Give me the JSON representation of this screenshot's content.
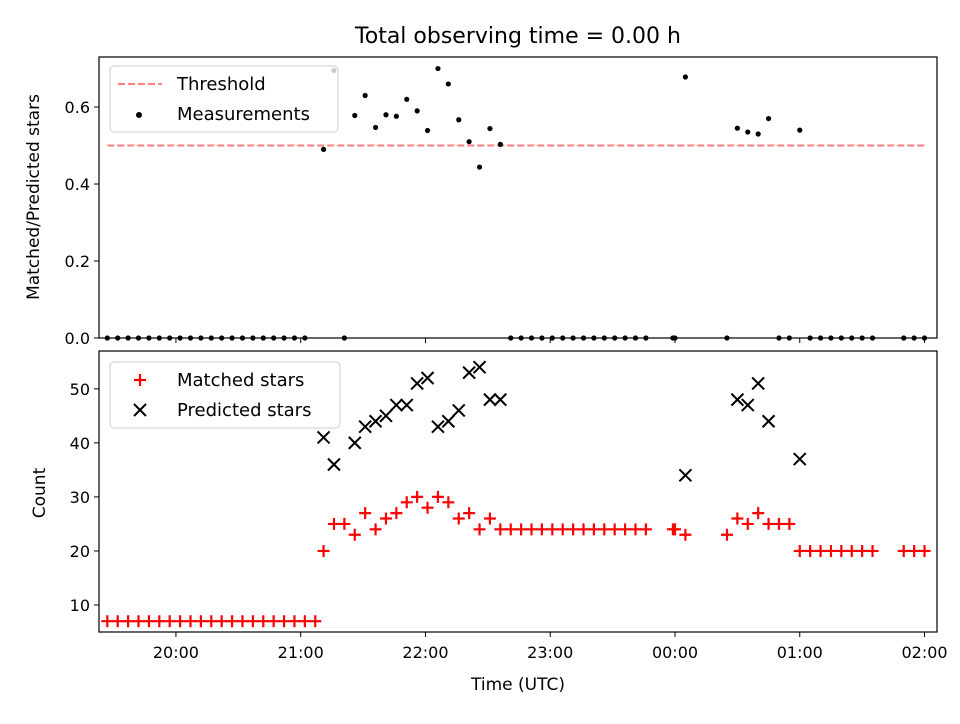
{
  "colors": {
    "threshold": "#ff7f7f",
    "measurement": "#000000",
    "matched": "#ff0000",
    "predicted": "#000000"
  },
  "chart_data": [
    {
      "type": "scatter",
      "title": "Total observing time = 0.00 h",
      "xlabel": "",
      "ylabel": "Matched/Predicted stars",
      "ylim": [
        0,
        0.73
      ],
      "yticks": [
        "0.0",
        "0.2",
        "0.4",
        "0.6"
      ],
      "xticks": [
        "20:00",
        "21:00",
        "22:00",
        "23:00",
        "00:00",
        "01:00",
        "02:00"
      ],
      "legend": {
        "position": "top-left",
        "entries": [
          "Threshold",
          "Measurements"
        ]
      },
      "threshold": {
        "name": "Threshold",
        "value": 0.5,
        "x_start": "19:27",
        "x_end": "02:00"
      },
      "series": [
        {
          "name": "Measurements",
          "points": [
            [
              "19:27",
              0
            ],
            [
              "19:32",
              0
            ],
            [
              "19:37",
              0
            ],
            [
              "19:42",
              0
            ],
            [
              "19:47",
              0
            ],
            [
              "19:52",
              0
            ],
            [
              "19:57",
              0
            ],
            [
              "20:02",
              0
            ],
            [
              "20:07",
              0
            ],
            [
              "20:12",
              0
            ],
            [
              "20:17",
              0
            ],
            [
              "20:22",
              0
            ],
            [
              "20:27",
              0
            ],
            [
              "20:32",
              0
            ],
            [
              "20:37",
              0
            ],
            [
              "20:42",
              0
            ],
            [
              "20:47",
              0
            ],
            [
              "20:52",
              0
            ],
            [
              "20:57",
              0
            ],
            [
              "21:02",
              0
            ],
            [
              "21:11",
              0.49
            ],
            [
              "21:16",
              0.695
            ],
            [
              "21:21",
              0
            ],
            [
              "21:26",
              0.578
            ],
            [
              "21:31",
              0.63
            ],
            [
              "21:36",
              0.547
            ],
            [
              "21:41",
              0.58
            ],
            [
              "21:46",
              0.576
            ],
            [
              "21:51",
              0.62
            ],
            [
              "21:56",
              0.59
            ],
            [
              "22:01",
              0.539
            ],
            [
              "22:06",
              0.7
            ],
            [
              "22:11",
              0.66
            ],
            [
              "22:16",
              0.567
            ],
            [
              "22:21",
              0.51
            ],
            [
              "22:26",
              0.444
            ],
            [
              "22:31",
              0.544
            ],
            [
              "22:36",
              0.503
            ],
            [
              "22:41",
              0
            ],
            [
              "22:46",
              0
            ],
            [
              "22:51",
              0
            ],
            [
              "22:56",
              0
            ],
            [
              "23:01",
              0
            ],
            [
              "23:06",
              0
            ],
            [
              "23:11",
              0
            ],
            [
              "23:16",
              0
            ],
            [
              "23:21",
              0
            ],
            [
              "23:26",
              0
            ],
            [
              "23:31",
              0
            ],
            [
              "23:36",
              0
            ],
            [
              "23:41",
              0
            ],
            [
              "23:46",
              0
            ],
            [
              "23:59",
              0
            ],
            [
              "00:00",
              0
            ],
            [
              "00:05",
              0.678
            ],
            [
              "00:25",
              0
            ],
            [
              "00:30",
              0.545
            ],
            [
              "00:35",
              0.535
            ],
            [
              "00:40",
              0.53
            ],
            [
              "00:45",
              0.57
            ],
            [
              "00:50",
              0
            ],
            [
              "00:55",
              0
            ],
            [
              "01:00",
              0.54
            ],
            [
              "01:05",
              0
            ],
            [
              "01:10",
              0
            ],
            [
              "01:15",
              0
            ],
            [
              "01:20",
              0
            ],
            [
              "01:25",
              0
            ],
            [
              "01:30",
              0
            ],
            [
              "01:35",
              0
            ],
            [
              "01:50",
              0
            ],
            [
              "01:55",
              0
            ],
            [
              "02:00",
              0
            ]
          ]
        }
      ]
    },
    {
      "type": "scatter",
      "title": "",
      "xlabel": "Time (UTC)",
      "ylabel": "Count",
      "ylim": [
        5,
        57
      ],
      "yticks": [
        "10",
        "20",
        "30",
        "40",
        "50"
      ],
      "xticks": [
        "20:00",
        "21:00",
        "22:00",
        "23:00",
        "00:00",
        "01:00",
        "02:00"
      ],
      "legend": {
        "position": "top-left",
        "entries": [
          "Matched stars",
          "Predicted stars"
        ]
      },
      "series": [
        {
          "name": "Matched stars",
          "points": [
            [
              "19:27",
              7
            ],
            [
              "19:32",
              7
            ],
            [
              "19:37",
              7
            ],
            [
              "19:42",
              7
            ],
            [
              "19:47",
              7
            ],
            [
              "19:52",
              7
            ],
            [
              "19:57",
              7
            ],
            [
              "20:02",
              7
            ],
            [
              "20:07",
              7
            ],
            [
              "20:12",
              7
            ],
            [
              "20:17",
              7
            ],
            [
              "20:22",
              7
            ],
            [
              "20:27",
              7
            ],
            [
              "20:32",
              7
            ],
            [
              "20:37",
              7
            ],
            [
              "20:42",
              7
            ],
            [
              "20:47",
              7
            ],
            [
              "20:52",
              7
            ],
            [
              "20:57",
              7
            ],
            [
              "21:02",
              7
            ],
            [
              "21:07",
              7
            ],
            [
              "21:11",
              20
            ],
            [
              "21:16",
              25
            ],
            [
              "21:21",
              25
            ],
            [
              "21:26",
              23
            ],
            [
              "21:31",
              27
            ],
            [
              "21:36",
              24
            ],
            [
              "21:41",
              26
            ],
            [
              "21:46",
              27
            ],
            [
              "21:51",
              29
            ],
            [
              "21:56",
              30
            ],
            [
              "22:01",
              28
            ],
            [
              "22:06",
              30
            ],
            [
              "22:11",
              29
            ],
            [
              "22:16",
              26
            ],
            [
              "22:21",
              27
            ],
            [
              "22:26",
              24
            ],
            [
              "22:31",
              26
            ],
            [
              "22:36",
              24
            ],
            [
              "22:41",
              24
            ],
            [
              "22:46",
              24
            ],
            [
              "22:51",
              24
            ],
            [
              "22:56",
              24
            ],
            [
              "23:01",
              24
            ],
            [
              "23:06",
              24
            ],
            [
              "23:11",
              24
            ],
            [
              "23:16",
              24
            ],
            [
              "23:21",
              24
            ],
            [
              "23:26",
              24
            ],
            [
              "23:31",
              24
            ],
            [
              "23:36",
              24
            ],
            [
              "23:41",
              24
            ],
            [
              "23:46",
              24
            ],
            [
              "23:59",
              24
            ],
            [
              "00:00",
              24
            ],
            [
              "00:05",
              23
            ],
            [
              "00:25",
              23
            ],
            [
              "00:30",
              26
            ],
            [
              "00:35",
              25
            ],
            [
              "00:40",
              27
            ],
            [
              "00:45",
              25
            ],
            [
              "00:50",
              25
            ],
            [
              "00:55",
              25
            ],
            [
              "01:00",
              20
            ],
            [
              "01:05",
              20
            ],
            [
              "01:10",
              20
            ],
            [
              "01:15",
              20
            ],
            [
              "01:20",
              20
            ],
            [
              "01:25",
              20
            ],
            [
              "01:30",
              20
            ],
            [
              "01:35",
              20
            ],
            [
              "01:50",
              20
            ],
            [
              "01:55",
              20
            ],
            [
              "02:00",
              20
            ]
          ]
        },
        {
          "name": "Predicted stars",
          "points": [
            [
              "21:11",
              41
            ],
            [
              "21:16",
              36
            ],
            [
              "21:26",
              40
            ],
            [
              "21:31",
              43
            ],
            [
              "21:36",
              44
            ],
            [
              "21:41",
              45
            ],
            [
              "21:46",
              47
            ],
            [
              "21:51",
              47
            ],
            [
              "21:56",
              51
            ],
            [
              "22:01",
              52
            ],
            [
              "22:06",
              43
            ],
            [
              "22:11",
              44
            ],
            [
              "22:16",
              46
            ],
            [
              "22:21",
              53
            ],
            [
              "22:26",
              54
            ],
            [
              "22:31",
              48
            ],
            [
              "22:36",
              48
            ],
            [
              "00:05",
              34
            ],
            [
              "00:30",
              48
            ],
            [
              "00:35",
              47
            ],
            [
              "00:40",
              51
            ],
            [
              "00:45",
              44
            ],
            [
              "01:00",
              37
            ]
          ]
        }
      ]
    }
  ]
}
